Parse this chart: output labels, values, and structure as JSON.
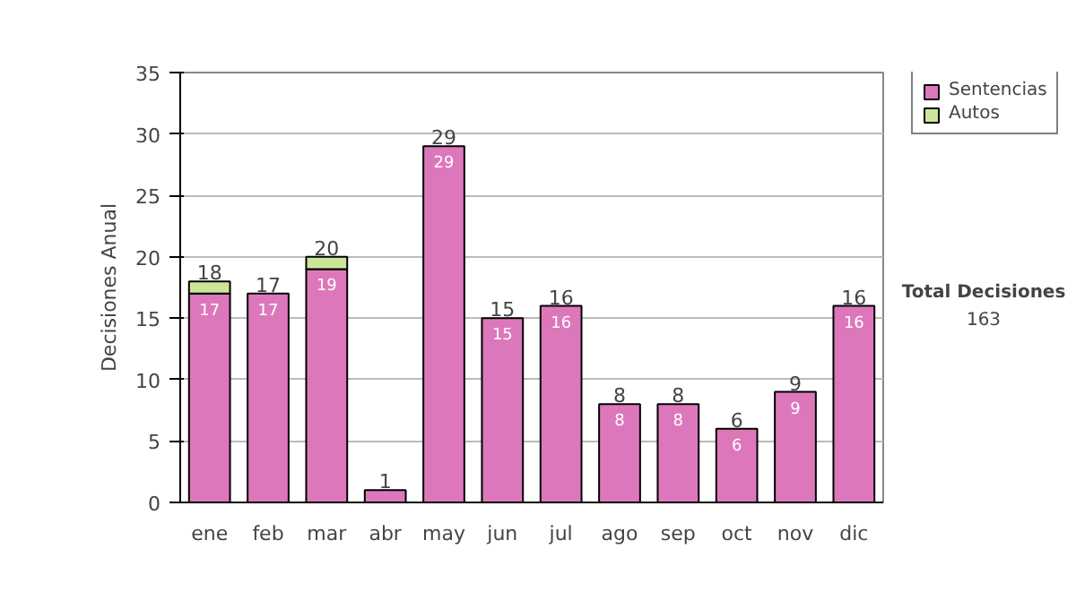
{
  "chart_data": {
    "type": "bar",
    "ylabel": "Decisiones Anual",
    "categories": [
      "ene",
      "feb",
      "mar",
      "abr",
      "may",
      "jun",
      "jul",
      "ago",
      "sep",
      "oct",
      "nov",
      "dic"
    ],
    "stacked": true,
    "series": [
      {
        "name": "Sentencias",
        "color": "#dd77bb",
        "values": [
          17,
          17,
          19,
          1,
          29,
          15,
          16,
          8,
          8,
          6,
          9,
          16
        ],
        "value_labels": [
          "17",
          "17",
          "19",
          null,
          "29",
          "15",
          "16",
          "8",
          "8",
          "6",
          "9",
          "16"
        ]
      },
      {
        "name": "Autos",
        "color": "#cce699",
        "values": [
          1,
          0,
          1,
          0,
          0,
          0,
          0,
          0,
          0,
          0,
          0,
          0
        ]
      }
    ],
    "totals": [
      "18",
      "17",
      "20",
      "1",
      "29",
      "15",
      "16",
      "8",
      "8",
      "6",
      "9",
      "16"
    ],
    "ylim": [
      0,
      35
    ],
    "yticks": [
      0,
      5,
      10,
      15,
      20,
      25,
      30,
      35
    ],
    "grid": "y",
    "legend": "right",
    "annotations": [
      "Total Decisiones",
      "163"
    ]
  }
}
